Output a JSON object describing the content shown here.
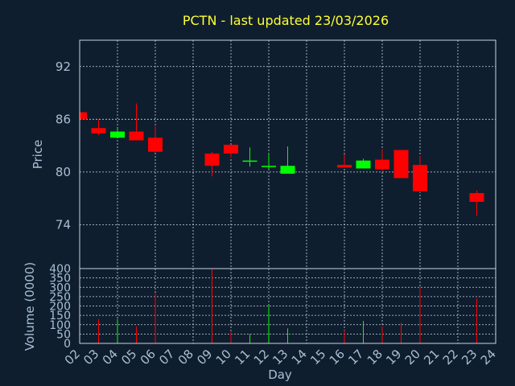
{
  "chart_data": {
    "type": "candlestick",
    "title": "PCTN - last updated 23/03/2026",
    "price_panel": {
      "ylabel": "Price",
      "ylim": [
        69,
        95
      ],
      "yticks": [
        74,
        80,
        86,
        92
      ]
    },
    "volume_panel": {
      "ylabel": "Volume (0000)",
      "ylim": [
        0,
        400
      ],
      "yticks": [
        0,
        50,
        100,
        150,
        200,
        250,
        300,
        350,
        400
      ]
    },
    "xlabel": "Day",
    "x_range": [
      2,
      24
    ],
    "xticks": [
      "02",
      "03",
      "04",
      "05",
      "06",
      "07",
      "08",
      "09",
      "10",
      "11",
      "12",
      "13",
      "14",
      "15",
      "16",
      "17",
      "18",
      "19",
      "20",
      "21",
      "22",
      "23",
      "24"
    ],
    "grid": true,
    "colors": {
      "up": "#00ff00",
      "down": "#ff0000",
      "background": "#0f1e2e",
      "title": "#ffff33",
      "axis_text": "#a9bfd6"
    },
    "candles": [
      {
        "day": 2,
        "open": 86.8,
        "high": 87.0,
        "low": 86.0,
        "close": 86.0,
        "volume": 0
      },
      {
        "day": 3,
        "open": 85.0,
        "high": 86.0,
        "low": 84.2,
        "close": 84.4,
        "volume": 130
      },
      {
        "day": 4,
        "open": 83.9,
        "high": 85.0,
        "low": 83.9,
        "close": 84.6,
        "volume": 130
      },
      {
        "day": 5,
        "open": 84.6,
        "high": 87.8,
        "low": 83.6,
        "close": 83.6,
        "volume": 90
      },
      {
        "day": 6,
        "open": 83.9,
        "high": 85.2,
        "low": 82.2,
        "close": 82.3,
        "volume": 270
      },
      {
        "day": 9,
        "open": 82.1,
        "high": 82.3,
        "low": 79.5,
        "close": 80.7,
        "volume": 400
      },
      {
        "day": 10,
        "open": 83.1,
        "high": 83.1,
        "low": 81.6,
        "close": 82.1,
        "volume": 60
      },
      {
        "day": 11,
        "open": 81.2,
        "high": 82.8,
        "low": 80.6,
        "close": 81.3,
        "volume": 50
      },
      {
        "day": 12,
        "open": 80.6,
        "high": 82.1,
        "low": 80.3,
        "close": 80.7,
        "volume": 200
      },
      {
        "day": 13,
        "open": 79.8,
        "high": 82.9,
        "low": 79.8,
        "close": 80.7,
        "volume": 80
      },
      {
        "day": 16,
        "open": 80.8,
        "high": 82.0,
        "low": 80.5,
        "close": 80.5,
        "volume": 70
      },
      {
        "day": 17,
        "open": 80.4,
        "high": 81.5,
        "low": 80.4,
        "close": 81.3,
        "volume": 120
      },
      {
        "day": 18,
        "open": 81.4,
        "high": 82.6,
        "low": 80.1,
        "close": 80.3,
        "volume": 90
      },
      {
        "day": 19,
        "open": 82.5,
        "high": 82.5,
        "low": 79.3,
        "close": 79.3,
        "volume": 110
      },
      {
        "day": 20,
        "open": 80.8,
        "high": 81.8,
        "low": 77.7,
        "close": 77.8,
        "volume": 300
      },
      {
        "day": 23,
        "open": 77.6,
        "high": 77.9,
        "low": 75.0,
        "close": 76.6,
        "volume": 240
      }
    ]
  }
}
